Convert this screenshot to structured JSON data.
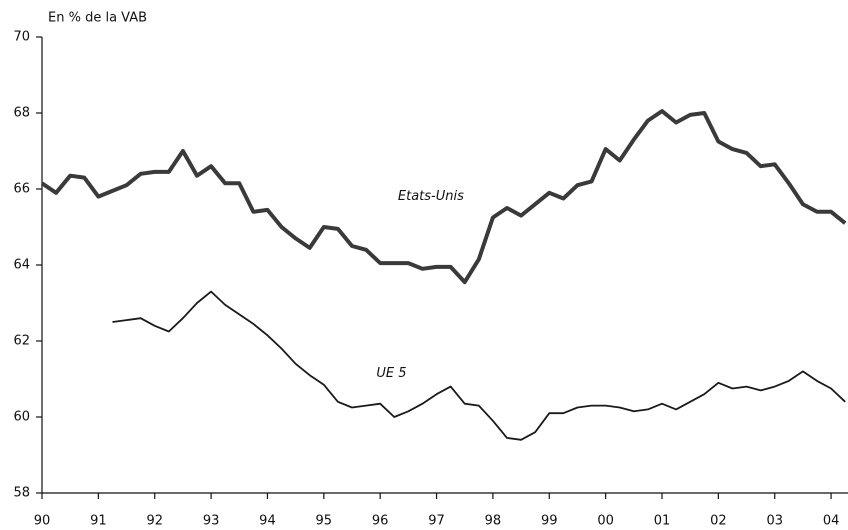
{
  "chart_data": {
    "type": "line",
    "y_axis_label": "En % de la VAB",
    "x": [
      1990,
      1990.25,
      1990.5,
      1990.75,
      1991,
      1991.25,
      1991.5,
      1991.75,
      1992,
      1992.25,
      1992.5,
      1992.75,
      1993,
      1993.25,
      1993.5,
      1993.75,
      1994,
      1994.25,
      1994.5,
      1994.75,
      1995,
      1995.25,
      1995.5,
      1995.75,
      1996,
      1996.25,
      1996.5,
      1996.75,
      1997,
      1997.25,
      1997.5,
      1997.75,
      1998,
      1998.25,
      1998.5,
      1998.75,
      1999,
      1999.25,
      1999.5,
      1999.75,
      2000,
      2000.25,
      2000.5,
      2000.75,
      2001,
      2001.25,
      2001.5,
      2001.75,
      2002,
      2002.25,
      2002.5,
      2002.75,
      2003,
      2003.25,
      2003.5,
      2003.75,
      2004,
      2004.25
    ],
    "series": [
      {
        "name": "Etats-Unis",
        "color": "#3a3a3a",
        "width": 4,
        "values": [
          66.15,
          65.9,
          66.35,
          66.3,
          65.8,
          65.95,
          66.1,
          66.4,
          66.45,
          66.45,
          67.0,
          66.35,
          66.6,
          66.15,
          66.15,
          65.4,
          65.45,
          65.0,
          64.7,
          64.45,
          65.0,
          64.95,
          64.5,
          64.4,
          64.05,
          64.05,
          64.05,
          63.9,
          63.95,
          63.95,
          63.55,
          64.15,
          65.25,
          65.5,
          65.3,
          65.6,
          65.9,
          65.75,
          66.1,
          66.2,
          67.05,
          66.75,
          67.3,
          67.8,
          68.05,
          67.75,
          67.95,
          68.0,
          67.25,
          67.05,
          66.95,
          66.6,
          66.65,
          66.15,
          65.6,
          65.4,
          65.4,
          65.1
        ]
      },
      {
        "name": "UE 5",
        "color": "#1a1a1a",
        "width": 1.8,
        "values": [
          null,
          null,
          null,
          null,
          null,
          62.5,
          62.55,
          62.6,
          62.4,
          62.25,
          62.6,
          63.0,
          63.3,
          62.95,
          62.7,
          62.45,
          62.15,
          61.8,
          61.4,
          61.1,
          60.85,
          60.4,
          60.25,
          60.3,
          60.35,
          60.0,
          60.15,
          60.35,
          60.6,
          60.8,
          60.35,
          60.3,
          59.9,
          59.45,
          59.4,
          59.6,
          60.1,
          60.1,
          60.25,
          60.3,
          60.3,
          60.25,
          60.15,
          60.2,
          60.35,
          60.2,
          60.4,
          60.6,
          60.9,
          60.75,
          60.8,
          60.7,
          60.8,
          60.95,
          61.2,
          60.95,
          60.75,
          60.4
        ]
      }
    ],
    "annotations": [
      {
        "text": "Etats-Unis",
        "x": 1996.9,
        "y": 65.8
      },
      {
        "text": "UE 5",
        "x": 1996.2,
        "y": 61.15
      }
    ],
    "xlim": [
      1990,
      2004.3
    ],
    "xticks": [
      {
        "value": 1990,
        "label": "90"
      },
      {
        "value": 1991,
        "label": "91"
      },
      {
        "value": 1992,
        "label": "92"
      },
      {
        "value": 1993,
        "label": "93"
      },
      {
        "value": 1994,
        "label": "94"
      },
      {
        "value": 1995,
        "label": "95"
      },
      {
        "value": 1996,
        "label": "96"
      },
      {
        "value": 1997,
        "label": "97"
      },
      {
        "value": 1998,
        "label": "98"
      },
      {
        "value": 1999,
        "label": "99"
      },
      {
        "value": 2000,
        "label": "00"
      },
      {
        "value": 2001,
        "label": "01"
      },
      {
        "value": 2002,
        "label": "02"
      },
      {
        "value": 2003,
        "label": "03"
      },
      {
        "value": 2004,
        "label": "04"
      }
    ],
    "ylim": [
      58,
      70
    ],
    "yticks": [
      58,
      60,
      62,
      64,
      66,
      68,
      70
    ]
  }
}
